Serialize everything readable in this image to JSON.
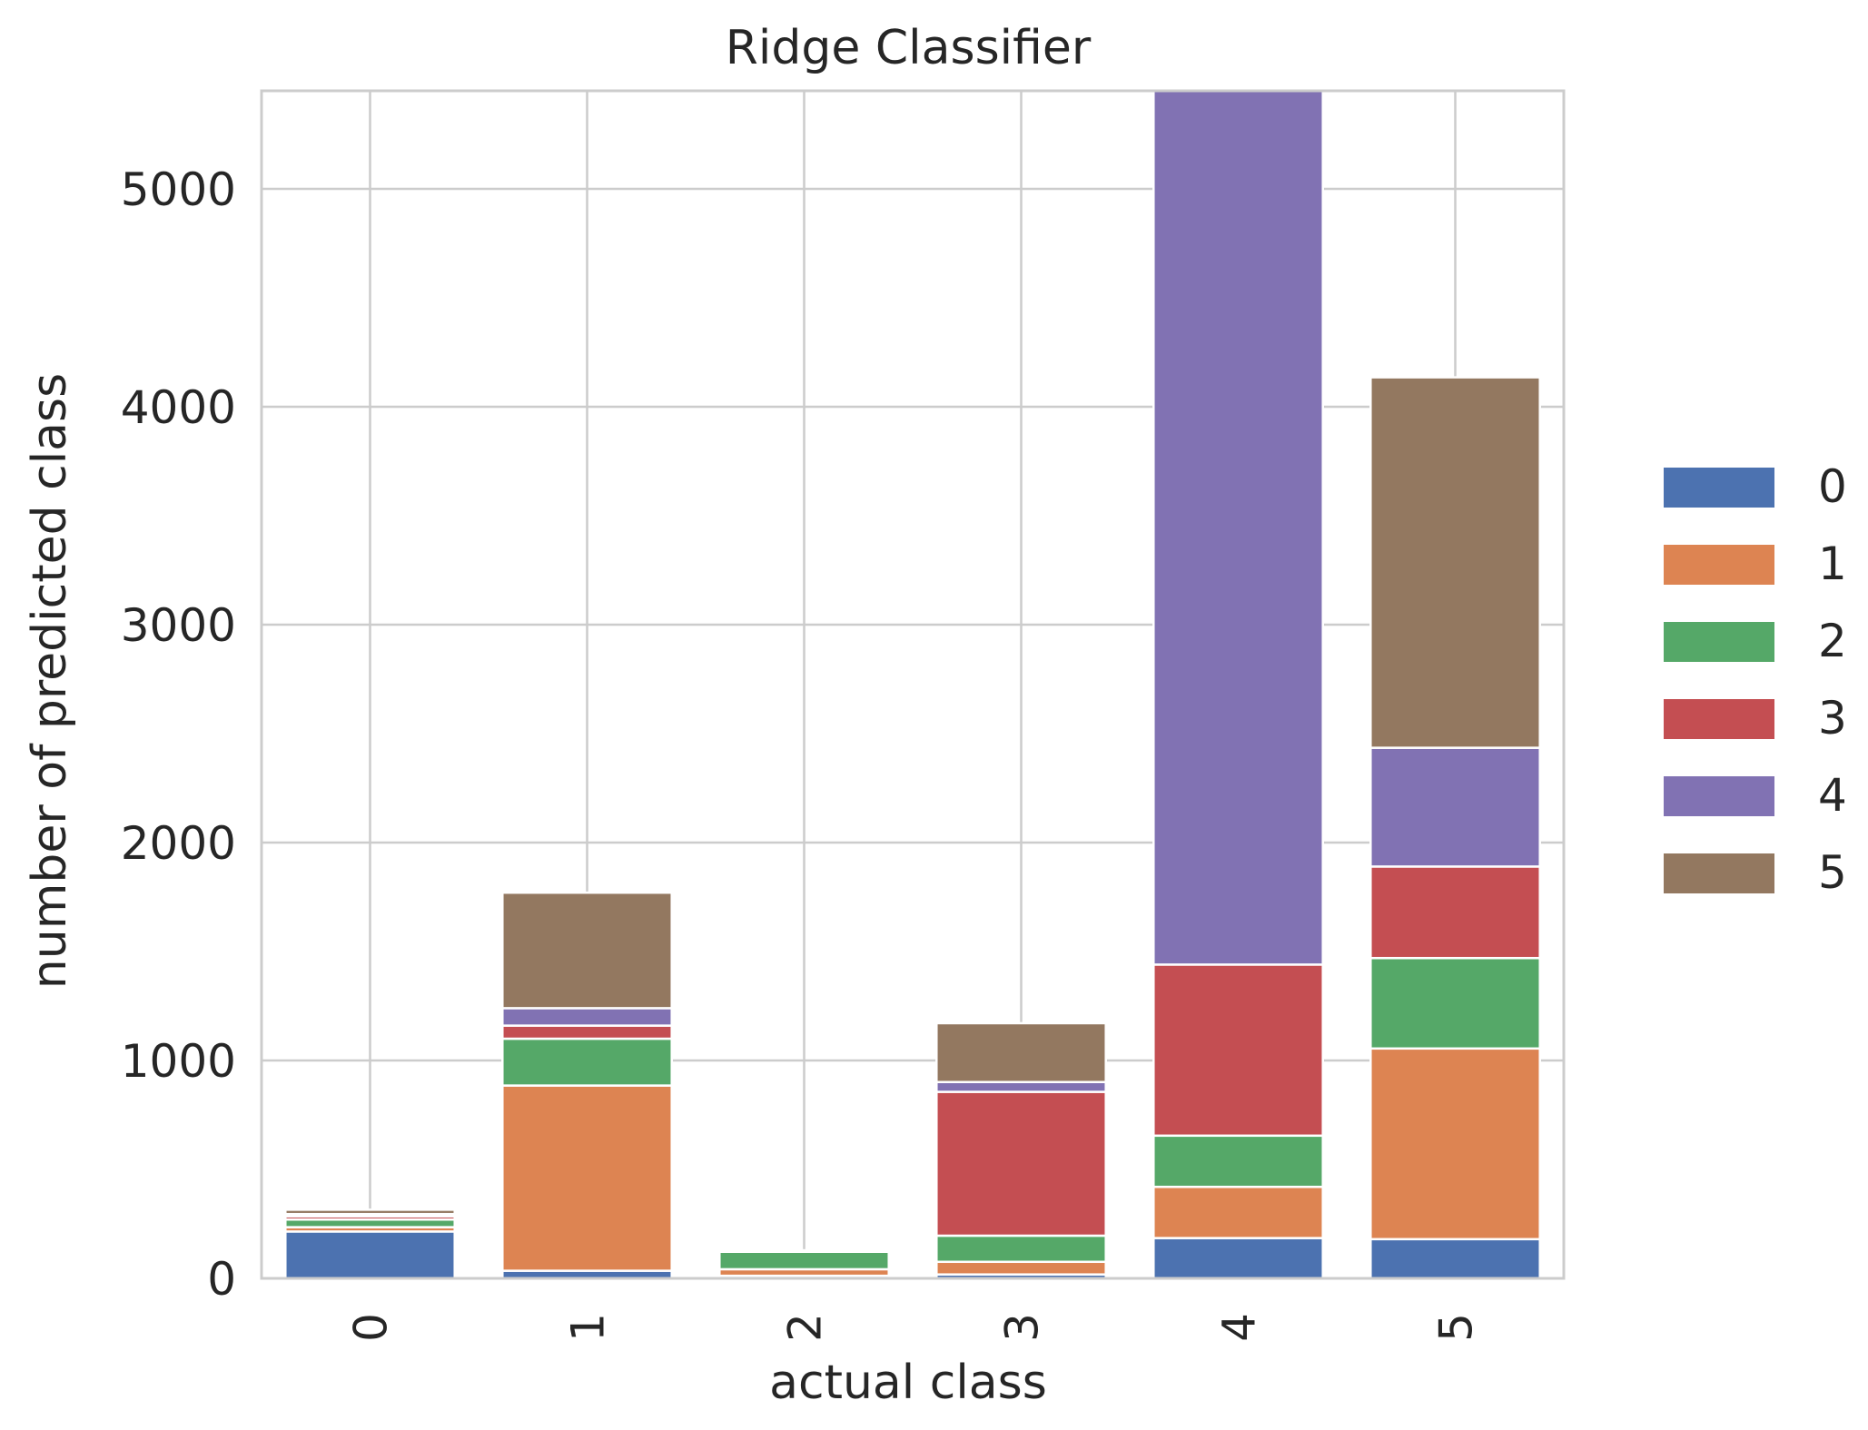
{
  "chart_data": {
    "type": "bar",
    "stacked": true,
    "title": "Ridge Classifier",
    "xlabel": "actual class",
    "ylabel": "number of predicted class",
    "categories": [
      "0",
      "1",
      "2",
      "3",
      "4",
      "5"
    ],
    "ylim": [
      0,
      5450
    ],
    "yticks": [
      0,
      1000,
      2000,
      3000,
      4000,
      5000
    ],
    "grid": true,
    "legend_position": "right",
    "series": [
      {
        "name": "0",
        "color": "#4c72b0",
        "values": [
          215,
          35,
          12,
          18,
          185,
          180
        ]
      },
      {
        "name": "1",
        "color": "#dd8452",
        "values": [
          20,
          850,
          30,
          58,
          235,
          875
        ]
      },
      {
        "name": "2",
        "color": "#55a868",
        "values": [
          35,
          215,
          80,
          120,
          235,
          415
        ]
      },
      {
        "name": "3",
        "color": "#c44e52",
        "values": [
          15,
          60,
          3,
          660,
          785,
          420
        ]
      },
      {
        "name": "4",
        "color": "#8172b3",
        "values": [
          10,
          80,
          2,
          45,
          4020,
          545
        ]
      },
      {
        "name": "5",
        "color": "#937860",
        "values": [
          20,
          530,
          2,
          270,
          0,
          1700
        ]
      }
    ]
  }
}
